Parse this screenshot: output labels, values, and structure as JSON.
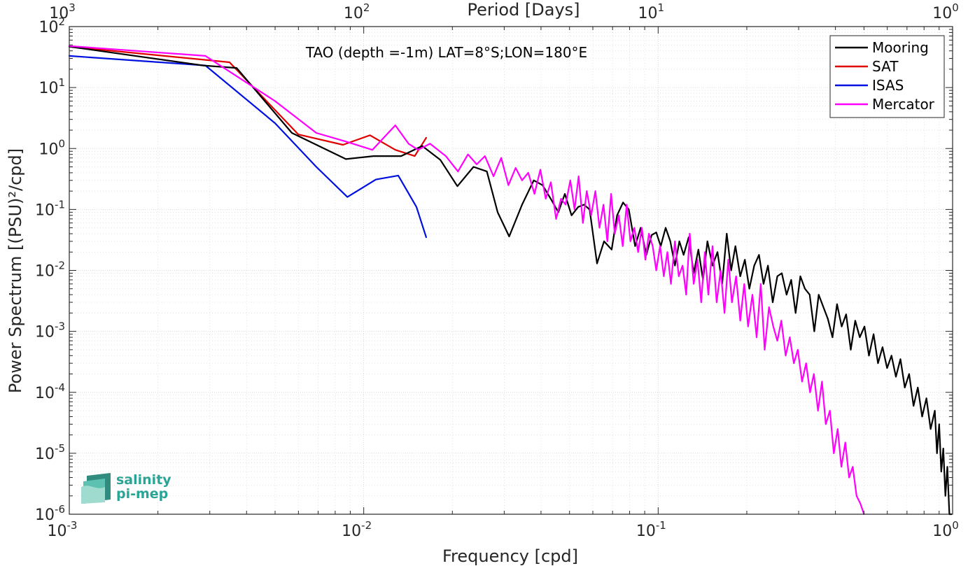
{
  "chart_data": {
    "type": "line",
    "title": "TAO (depth =-1m) LAT=8°S;LON=180°E",
    "xlabel": "Frequency [cpd]",
    "x2label": "Period [Days]",
    "ylabel": "Power Spectrum [(PSU)²/cpd]",
    "xscale": "log",
    "yscale": "log",
    "xlim": [
      0.001,
      1
    ],
    "ylim": [
      1e-06,
      100
    ],
    "grid": true,
    "legend_position": "top-right",
    "x_ticks": [
      {
        "value": 0.001,
        "base": "10",
        "exp": "-3"
      },
      {
        "value": 0.01,
        "base": "10",
        "exp": "-2"
      },
      {
        "value": 0.1,
        "base": "10",
        "exp": "-1"
      },
      {
        "value": 1,
        "base": "10",
        "exp": "0"
      }
    ],
    "x2_ticks": [
      {
        "value": 0.001,
        "base": "10",
        "exp": "3"
      },
      {
        "value": 0.01,
        "base": "10",
        "exp": "2"
      },
      {
        "value": 0.1,
        "base": "10",
        "exp": "1"
      },
      {
        "value": 1,
        "base": "10",
        "exp": "0"
      }
    ],
    "y_ticks": [
      {
        "value": 100,
        "base": "10",
        "exp": "2"
      },
      {
        "value": 10,
        "base": "10",
        "exp": "1"
      },
      {
        "value": 1,
        "base": "10",
        "exp": "0"
      },
      {
        "value": 0.1,
        "base": "10",
        "exp": "-1"
      },
      {
        "value": 0.01,
        "base": "10",
        "exp": "-2"
      },
      {
        "value": 0.001,
        "base": "10",
        "exp": "-3"
      },
      {
        "value": 0.0001,
        "base": "10",
        "exp": "-4"
      },
      {
        "value": 1e-05,
        "base": "10",
        "exp": "-5"
      },
      {
        "value": 1e-06,
        "base": "10",
        "exp": "-6"
      }
    ],
    "series": [
      {
        "name": "Mooring",
        "color": "#000000",
        "x": [
          0.001,
          0.00285,
          0.0037,
          0.0057,
          0.0087,
          0.0108,
          0.0134,
          0.0158,
          0.0182,
          0.0208,
          0.0236,
          0.0262,
          0.0285,
          0.0312,
          0.0345,
          0.0378,
          0.0405,
          0.0435,
          0.0458,
          0.0482,
          0.0508,
          0.0535,
          0.056,
          0.0585,
          0.062,
          0.0655,
          0.0695,
          0.0725,
          0.076,
          0.0795,
          0.0835,
          0.0872,
          0.0912,
          0.095,
          0.0985,
          0.102,
          0.106,
          0.11,
          0.114,
          0.118,
          0.122,
          0.127,
          0.132,
          0.137,
          0.142,
          0.147,
          0.153,
          0.159,
          0.165,
          0.171,
          0.177,
          0.183,
          0.19,
          0.197,
          0.204,
          0.212,
          0.22,
          0.228,
          0.236,
          0.245,
          0.254,
          0.263,
          0.273,
          0.283,
          0.293,
          0.304,
          0.315,
          0.327,
          0.339,
          0.351,
          0.364,
          0.377,
          0.391,
          0.405,
          0.42,
          0.435,
          0.451,
          0.467,
          0.484,
          0.502,
          0.52,
          0.539,
          0.558,
          0.578,
          0.599,
          0.62,
          0.642,
          0.665,
          0.688,
          0.712,
          0.737,
          0.762,
          0.788,
          0.815,
          0.842,
          0.87,
          0.885,
          0.9,
          0.915,
          0.93,
          0.945,
          0.96,
          0.975,
          0.99
        ],
        "y": [
          47,
          23,
          21,
          1.8,
          0.67,
          0.75,
          0.75,
          1.1,
          0.65,
          0.24,
          0.5,
          0.42,
          0.09,
          0.036,
          0.12,
          0.3,
          0.25,
          0.14,
          0.09,
          0.18,
          0.08,
          0.11,
          0.12,
          0.1,
          0.013,
          0.03,
          0.022,
          0.08,
          0.13,
          0.1,
          0.025,
          0.05,
          0.018,
          0.038,
          0.042,
          0.025,
          0.05,
          0.03,
          0.012,
          0.03,
          0.018,
          0.035,
          0.009,
          0.022,
          0.007,
          0.03,
          0.012,
          0.02,
          0.006,
          0.04,
          0.01,
          0.025,
          0.008,
          0.015,
          0.005,
          0.012,
          0.018,
          0.006,
          0.012,
          0.003,
          0.008,
          0.009,
          0.004,
          0.007,
          0.002,
          0.008,
          0.005,
          0.004,
          0.001,
          0.004,
          0.0025,
          0.0016,
          0.0008,
          0.0028,
          0.0012,
          0.0019,
          0.0005,
          0.0015,
          0.0008,
          0.0012,
          0.0004,
          0.0009,
          0.0003,
          0.00055,
          0.00025,
          0.0004,
          0.00018,
          0.00035,
          0.00012,
          0.0002,
          6e-05,
          0.00012,
          4e-05,
          8e-05,
          2.5e-05,
          5e-05,
          1e-05,
          3e-05,
          5e-06,
          1.2e-05,
          2e-06,
          6e-06,
          1e-06,
          1e-06
        ]
      },
      {
        "name": "SAT",
        "color": "#e00000",
        "x": [
          0.001,
          0.0035,
          0.006,
          0.0085,
          0.0105,
          0.0128,
          0.0149,
          0.0163
        ],
        "y": [
          47,
          26,
          1.7,
          1.15,
          1.65,
          0.95,
          0.75,
          1.5
        ]
      },
      {
        "name": "ISAS",
        "color": "#0010e0",
        "x": [
          0.001,
          0.0029,
          0.005,
          0.0069,
          0.0088,
          0.011,
          0.0131,
          0.0151,
          0.0163
        ],
        "y": [
          33,
          23,
          2.6,
          0.5,
          0.16,
          0.31,
          0.36,
          0.11,
          0.035
        ]
      },
      {
        "name": "Mercator",
        "color": "#ff00ff",
        "x": [
          0.001,
          0.0029,
          0.005,
          0.0069,
          0.0087,
          0.0107,
          0.0128,
          0.0142,
          0.0153,
          0.0168,
          0.019,
          0.0209,
          0.0226,
          0.0242,
          0.0258,
          0.0276,
          0.0293,
          0.031,
          0.0328,
          0.0345,
          0.0362,
          0.038,
          0.0398,
          0.0415,
          0.0432,
          0.045,
          0.0468,
          0.0485,
          0.0503,
          0.052,
          0.0537,
          0.0555,
          0.0572,
          0.0592,
          0.0612,
          0.0632,
          0.0652,
          0.0672,
          0.0692,
          0.0712,
          0.0735,
          0.0758,
          0.0782,
          0.0805,
          0.083,
          0.0855,
          0.088,
          0.0905,
          0.093,
          0.0958,
          0.0985,
          0.1015,
          0.1045,
          0.1075,
          0.1105,
          0.114,
          0.1175,
          0.121,
          0.1245,
          0.128,
          0.132,
          0.136,
          0.14,
          0.144,
          0.148,
          0.153,
          0.158,
          0.163,
          0.168,
          0.173,
          0.178,
          0.184,
          0.19,
          0.196,
          0.202,
          0.209,
          0.216,
          0.223,
          0.23,
          0.238,
          0.246,
          0.254,
          0.262,
          0.271,
          0.28,
          0.289,
          0.298,
          0.308,
          0.318,
          0.328,
          0.338,
          0.349,
          0.36,
          0.371,
          0.383,
          0.395,
          0.407,
          0.419,
          0.432,
          0.445,
          0.458,
          0.472,
          0.486,
          0.5
        ],
        "y": [
          48,
          33,
          6,
          1.8,
          1.3,
          0.95,
          2.4,
          1.2,
          0.95,
          1.2,
          0.75,
          0.42,
          0.8,
          0.55,
          0.75,
          0.35,
          0.7,
          0.25,
          0.48,
          0.3,
          0.4,
          0.18,
          0.45,
          0.15,
          0.28,
          0.07,
          0.15,
          0.12,
          0.3,
          0.1,
          0.35,
          0.06,
          0.2,
          0.08,
          0.2,
          0.05,
          0.12,
          0.03,
          0.18,
          0.04,
          0.08,
          0.025,
          0.12,
          0.03,
          0.05,
          0.02,
          0.05,
          0.015,
          0.04,
          0.025,
          0.01,
          0.025,
          0.008,
          0.02,
          0.006,
          0.03,
          0.008,
          0.012,
          0.004,
          0.04,
          0.006,
          0.015,
          0.003,
          0.02,
          0.004,
          0.025,
          0.003,
          0.01,
          0.002,
          0.015,
          0.003,
          0.008,
          0.0015,
          0.006,
          0.0012,
          0.004,
          0.0008,
          0.006,
          0.0005,
          0.0025,
          0.0012,
          0.0007,
          0.0015,
          0.0004,
          0.0008,
          0.0003,
          0.0005,
          0.00015,
          0.0003,
          0.0001,
          0.0002,
          5e-05,
          0.00015,
          3e-05,
          5e-05,
          1e-05,
          2.5e-05,
          6e-06,
          1.5e-05,
          4e-06,
          6e-06,
          2e-06,
          1.5e-06,
          1e-06
        ]
      }
    ]
  },
  "logo": {
    "line1": "salinity",
    "line2": "pi-mep"
  }
}
